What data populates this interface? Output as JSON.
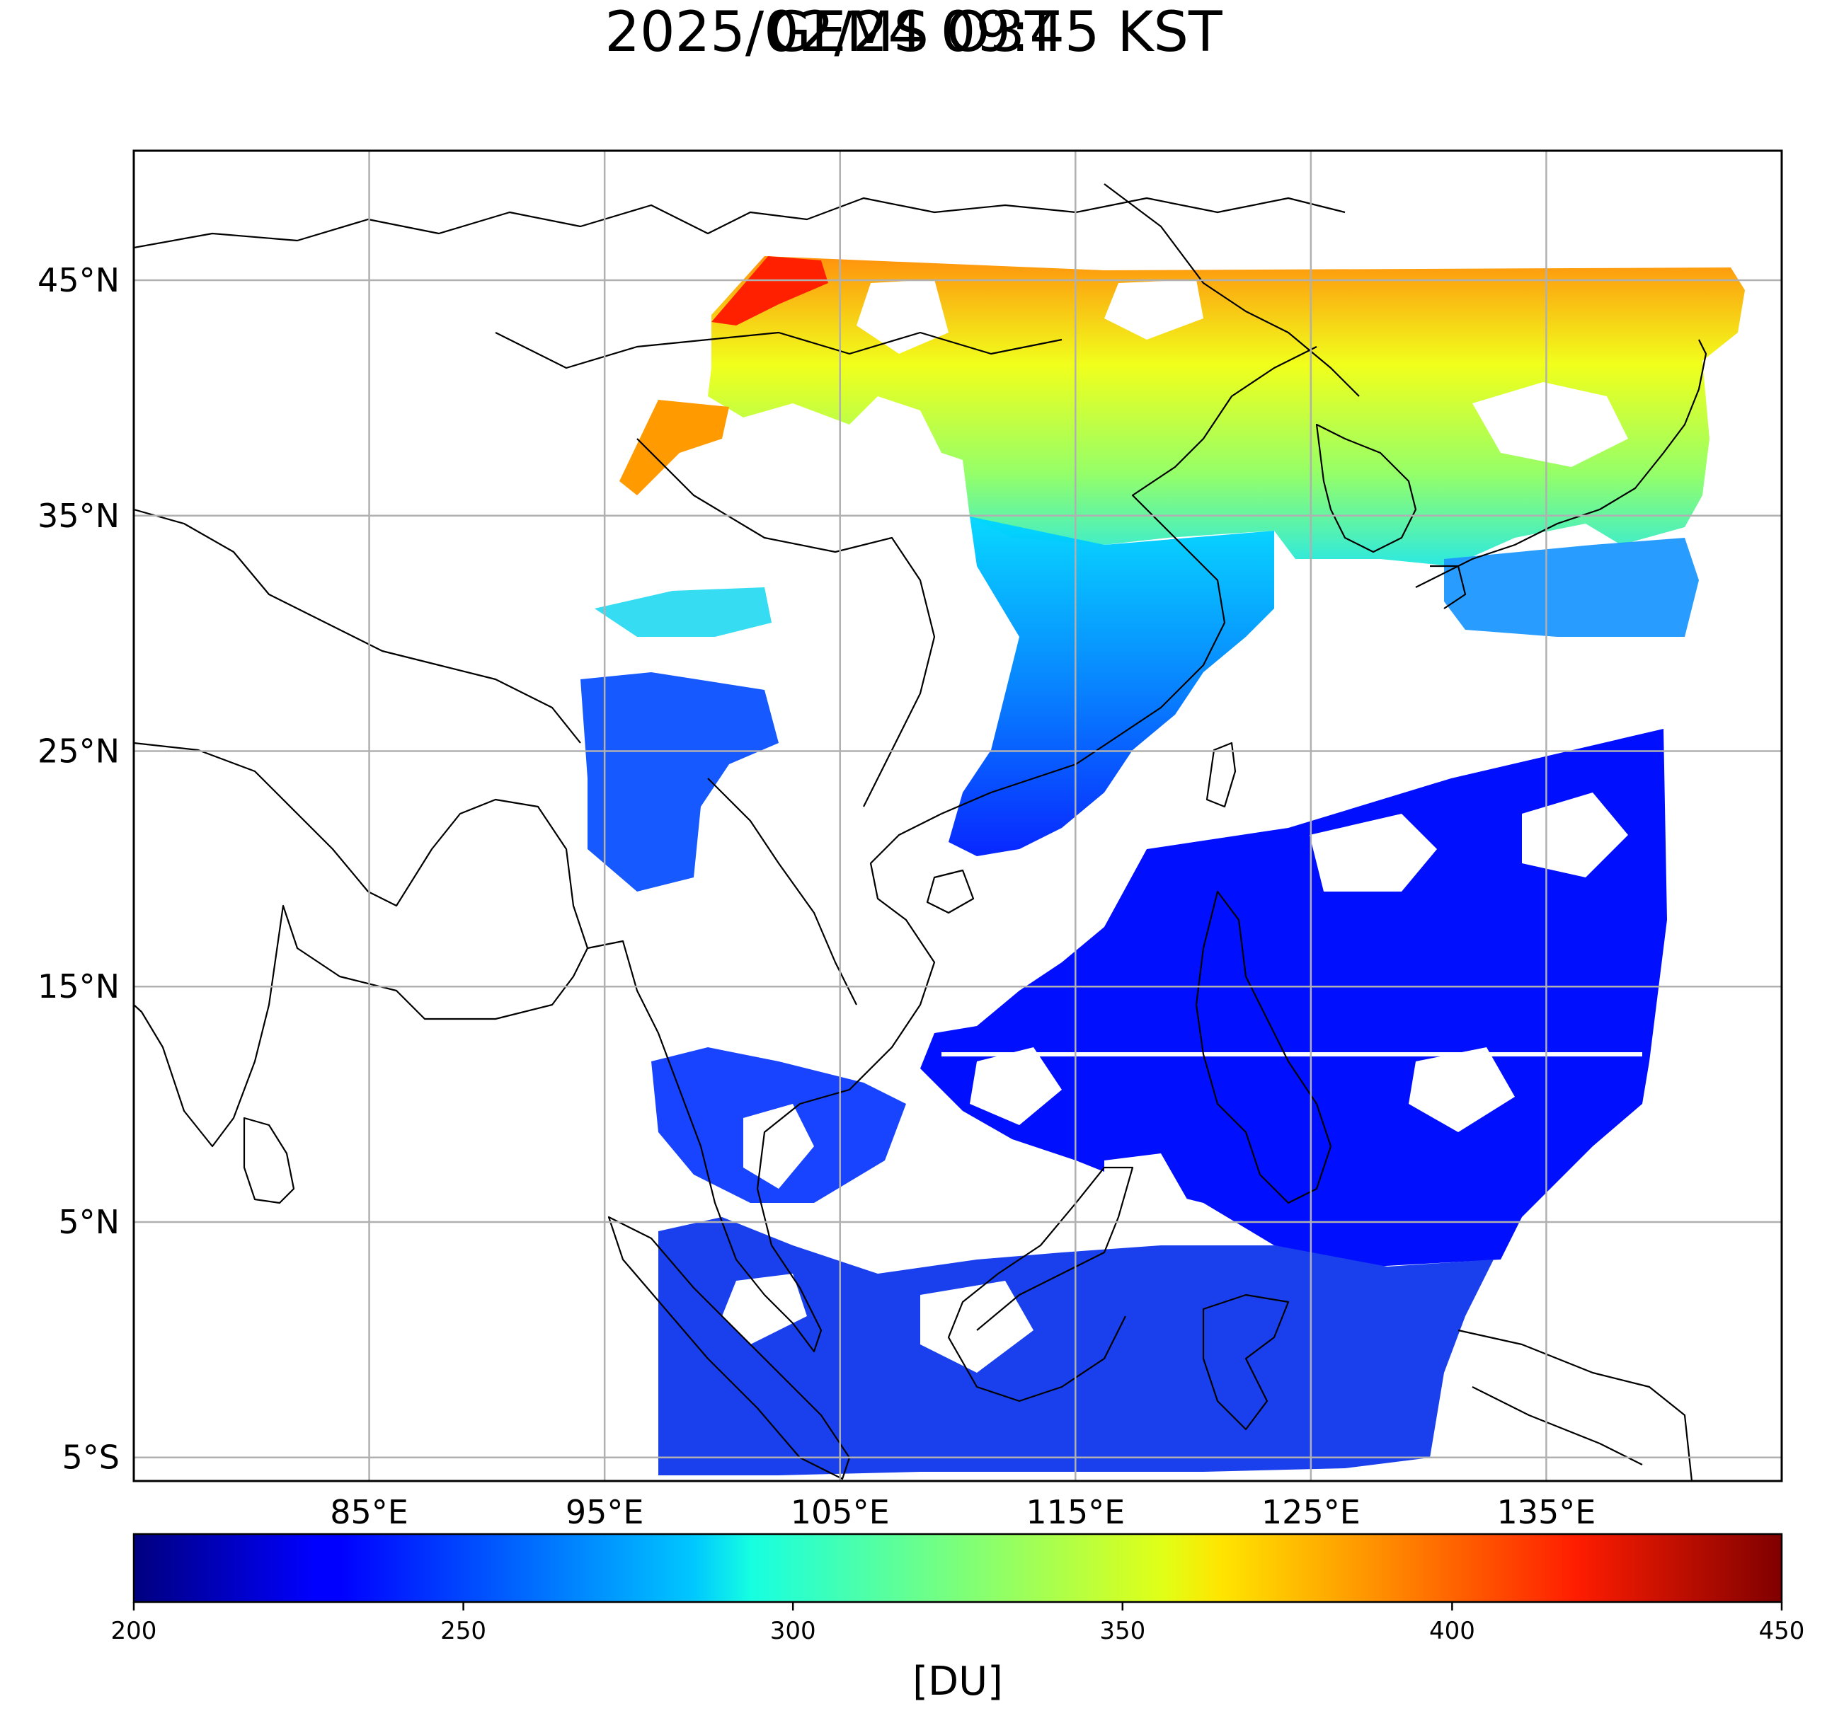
{
  "map": {
    "title_line1": "GEMS O3T",
    "title_line2": "2025/02/24 09:45 KST",
    "product": "O3T",
    "lat_ticks": [
      {
        "value": 45,
        "label": "45°N"
      },
      {
        "value": 35,
        "label": "35°N"
      },
      {
        "value": 25,
        "label": "25°N"
      },
      {
        "value": 15,
        "label": "15°N"
      },
      {
        "value": 5,
        "label": "5°N"
      },
      {
        "value": -5,
        "label": "5°S"
      }
    ],
    "lon_ticks": [
      {
        "value": 85,
        "label": "85°E"
      },
      {
        "value": 95,
        "label": "95°E"
      },
      {
        "value": 105,
        "label": "105°E"
      },
      {
        "value": 115,
        "label": "115°E"
      },
      {
        "value": 125,
        "label": "125°E"
      },
      {
        "value": 135,
        "label": "135°E"
      }
    ],
    "lon_range": [
      75,
      145
    ],
    "lat_range": [
      -6,
      50.5
    ],
    "grid": true
  },
  "colorbar": {
    "colormap": "jet",
    "min": 200,
    "max": 450,
    "ticks": [
      {
        "value": 200,
        "label": "200"
      },
      {
        "value": 250,
        "label": "250"
      },
      {
        "value": 300,
        "label": "300"
      },
      {
        "value": 350,
        "label": "350"
      },
      {
        "value": 400,
        "label": "400"
      },
      {
        "value": 450,
        "label": "450"
      }
    ],
    "unit": "[DU]",
    "stops": [
      {
        "value": 0.0,
        "color": "#00007f"
      },
      {
        "value": 0.11,
        "color": "#0000ff"
      },
      {
        "value": 0.125,
        "color": "#0000ff"
      },
      {
        "value": 0.34,
        "color": "#00c8ff"
      },
      {
        "value": 0.375,
        "color": "#16ffe1"
      },
      {
        "value": 0.5,
        "color": "#7bff7b"
      },
      {
        "value": 0.625,
        "color": "#e1ff16"
      },
      {
        "value": 0.66,
        "color": "#ffe500"
      },
      {
        "value": 0.75,
        "color": "#ff9400"
      },
      {
        "value": 0.875,
        "color": "#ff1d00"
      },
      {
        "value": 1.0,
        "color": "#7f0000"
      }
    ]
  },
  "data_regions": [
    {
      "name": "north-band",
      "o3": 370,
      "colors": [
        "#ff9a00",
        "#f4ff0c",
        "#c8ff30"
      ]
    },
    {
      "name": "northwest-high",
      "o3": 425,
      "colors": [
        "#ff2000"
      ]
    },
    {
      "name": "korea-japan",
      "o3": 320,
      "colors": [
        "#40ffb8",
        "#00d8ff"
      ]
    },
    {
      "name": "east-china-sea",
      "o3": 270,
      "colors": [
        "#0090ff",
        "#0050ff"
      ]
    },
    {
      "name": "tropics",
      "o3": 240,
      "colors": [
        "#0010ff",
        "#1a3cf0"
      ]
    }
  ]
}
